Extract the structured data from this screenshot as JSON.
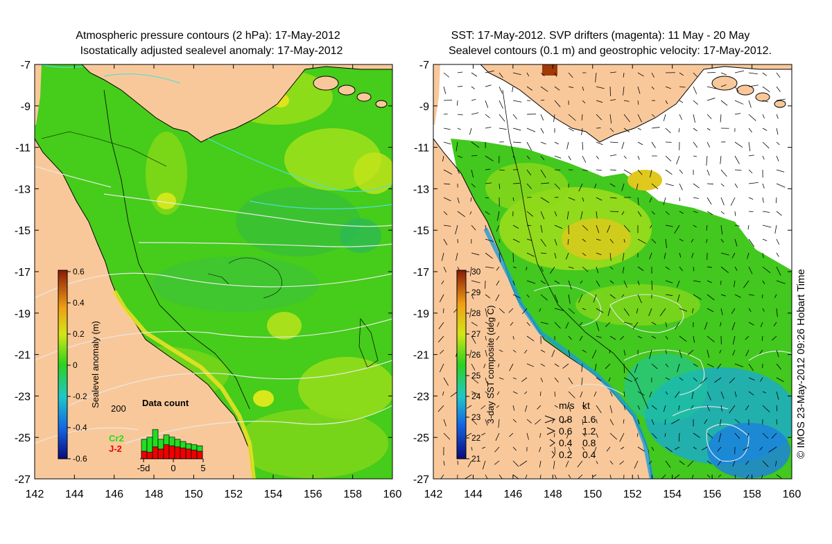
{
  "left_panel": {
    "title_line1": "Atmospheric pressure contours (2 hPa): 17-May-2012",
    "title_line2": "Isostatically adjusted sealevel anomaly: 17-May-2012",
    "lon_ticks": [
      "142",
      "144",
      "146",
      "148",
      "150",
      "152",
      "154",
      "156",
      "158",
      "160"
    ],
    "lat_ticks": [
      "-7",
      "-9",
      "-11",
      "-13",
      "-15",
      "-17",
      "-19",
      "-21",
      "-23",
      "-25",
      "-27"
    ],
    "colorbar": {
      "label": "Sealevel anomaly (m)",
      "ticks": [
        "0.6",
        "0.4",
        "0.2",
        "0",
        "-0.2",
        "-0.4",
        "-0.6"
      ],
      "range": [
        -0.6,
        0.6
      ]
    },
    "histogram": {
      "title": "Data count",
      "y_tick": "200",
      "x_ticks": [
        "-5d",
        "0",
        "5"
      ],
      "legend": [
        {
          "label": "Cr2",
          "color": "#22dd22"
        },
        {
          "label": "J-2",
          "color": "#ee0000"
        }
      ]
    }
  },
  "right_panel": {
    "title_line1": "SST: 17-May-2012. SVP drifters (magenta): 11 May - 20 May",
    "title_line2": "Sealevel contours (0.1 m) and geostrophic velocity: 17-May-2012.",
    "lon_ticks": [
      "142",
      "144",
      "146",
      "148",
      "150",
      "152",
      "154",
      "156",
      "158",
      "160"
    ],
    "lat_ticks": [
      "-7",
      "-9",
      "-11",
      "-13",
      "-15",
      "-17",
      "-19",
      "-21",
      "-23",
      "-25",
      "-27"
    ],
    "colorbar": {
      "label": "3-day SST composite (deg C)",
      "ticks": [
        "30",
        "29",
        "28",
        "27",
        "26",
        "25",
        "24",
        "23",
        "22",
        "21"
      ],
      "range": [
        21,
        30
      ]
    },
    "velocity_legend": {
      "header_ms": "m/s",
      "header_kt": "kt",
      "rows": [
        {
          "ms": "0.8",
          "kt": "1.6"
        },
        {
          "ms": "0.6",
          "kt": "1.2"
        },
        {
          "ms": "0.4",
          "kt": "0.8"
        },
        {
          "ms": "0.2",
          "kt": "0.4"
        }
      ]
    }
  },
  "credit": "© IMOS 23-May-2012 09:26 Hobart Time",
  "colors": {
    "land": "#f9c89a",
    "ocean_green": "#4fd21c",
    "coast": "#000000",
    "contour": "#e8e8e8"
  }
}
